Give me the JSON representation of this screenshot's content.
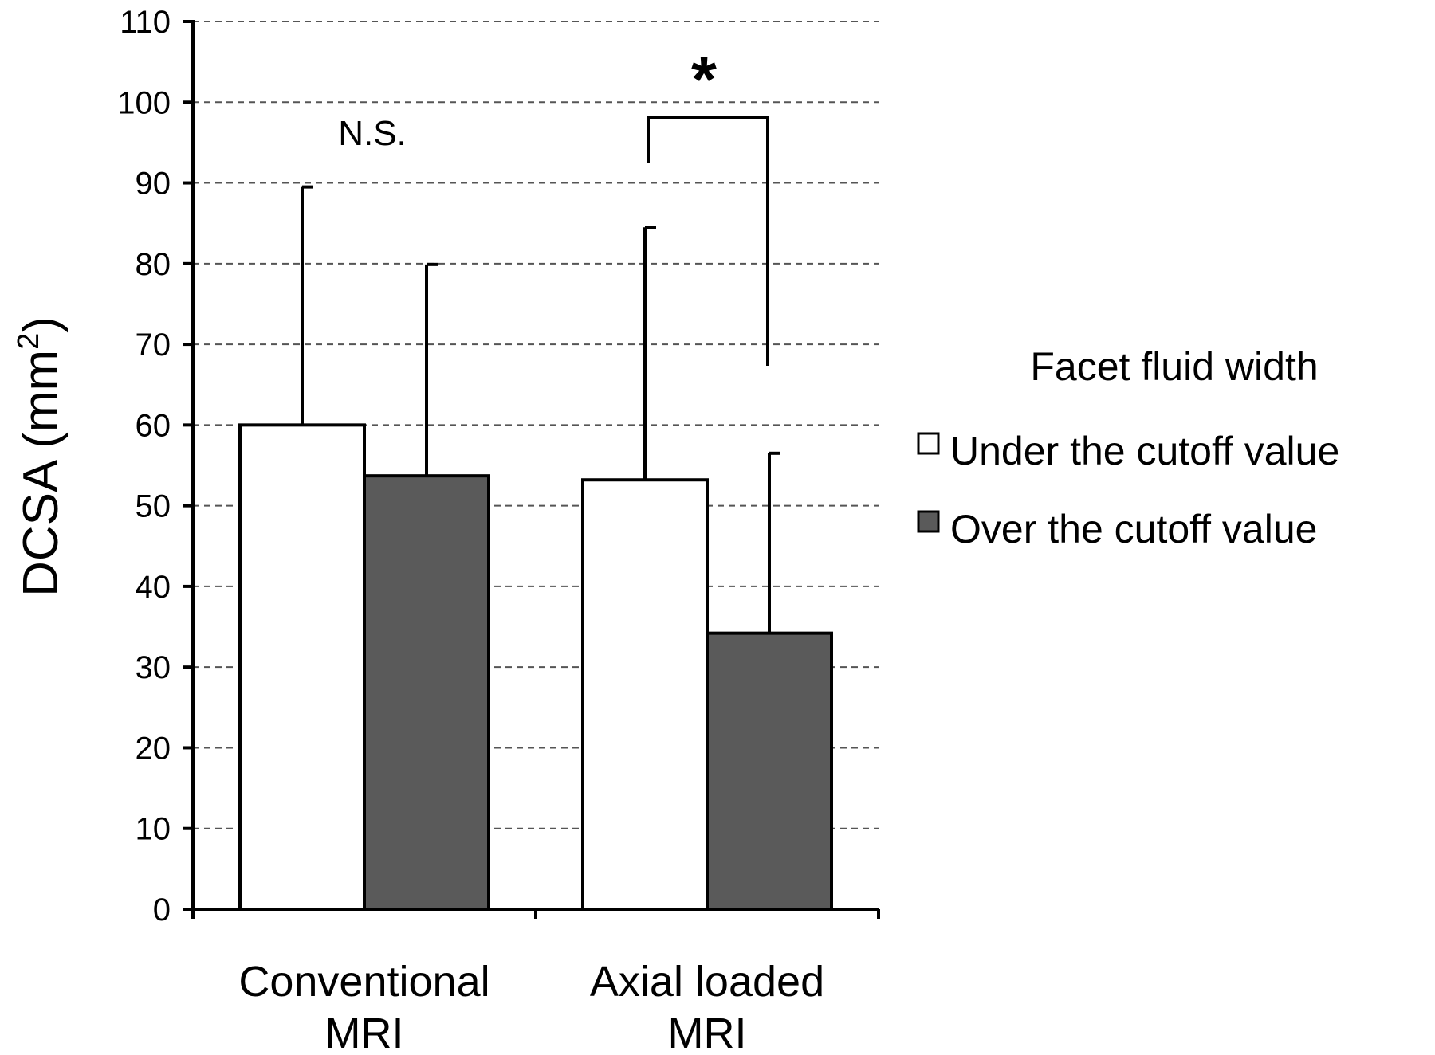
{
  "chart_data": {
    "type": "bar",
    "categories": [
      "Conventional MRI",
      "Axial loaded MRI"
    ],
    "category_lines": [
      [
        "Conventional",
        "MRI"
      ],
      [
        "Axial loaded",
        "MRI"
      ]
    ],
    "series": [
      {
        "name": "Under the cutoff value",
        "color": "#ffffff",
        "values": [
          60,
          53.2
        ],
        "error_upper": [
          89.5,
          84.5
        ]
      },
      {
        "name": "Over the cutoff value",
        "color": "#5a5a5a",
        "values": [
          53.7,
          34.2
        ],
        "error_upper": [
          79.9,
          56.5
        ]
      }
    ],
    "ylabel": "DCSA (mm",
    "ylabel_superscript": "2",
    "ylabel_close": ")",
    "ylim": [
      0,
      110
    ],
    "yticks": [
      0,
      10,
      20,
      30,
      40,
      50,
      60,
      70,
      80,
      90,
      100,
      110
    ],
    "grid": "horizontal dashed",
    "legend": {
      "title": "Facet fluid width",
      "placement": "right"
    },
    "annotations": [
      {
        "text": "N.S.",
        "category": "Conventional MRI"
      },
      {
        "text": "*",
        "category": "Axial loaded MRI",
        "bracket": true
      }
    ]
  }
}
